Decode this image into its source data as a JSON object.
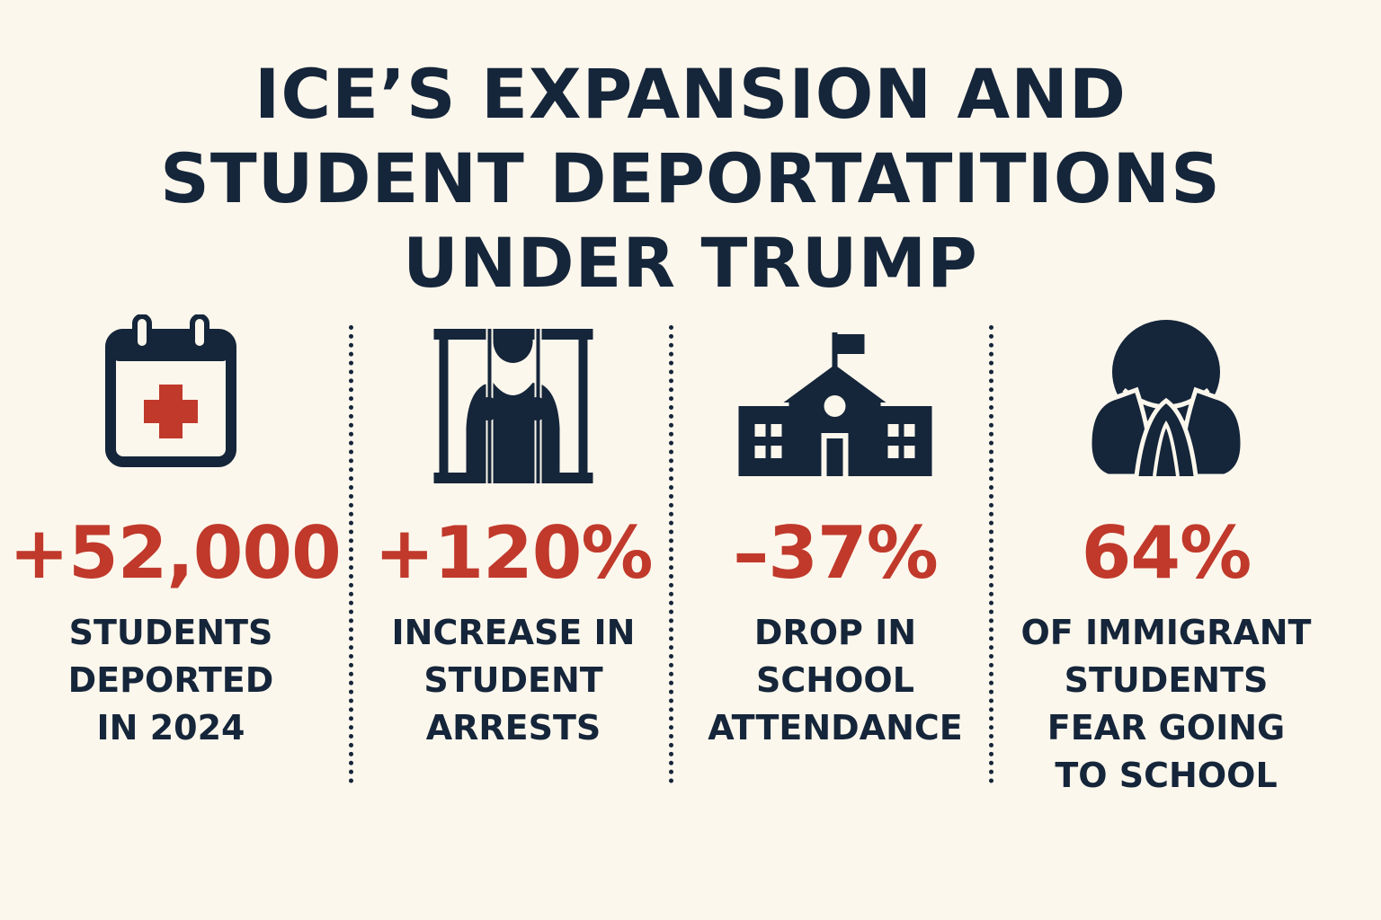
{
  "title": {
    "line1": "ICE’S EXPANSION AND",
    "line2": "STUDENT DEPORTATITIONS",
    "line3": "UNDER TRUMP"
  },
  "colors": {
    "navy": "#15253a",
    "red": "#c0392b",
    "background": "#fcf7ec"
  },
  "stats": [
    {
      "icon": "calendar-icon",
      "value": "+52,000",
      "caption": [
        "STUDENTS",
        "DEPORTED",
        "IN 2024"
      ]
    },
    {
      "icon": "jail-bars-icon",
      "value": "+120%",
      "caption": [
        "INCREASE IN",
        "STUDENT",
        "ARRESTS"
      ]
    },
    {
      "icon": "school-building-icon",
      "value": "–37%",
      "caption": [
        "DROP IN",
        "SCHOOL",
        "ATTENDANCE"
      ]
    },
    {
      "icon": "fearful-person-icon",
      "value": "64%",
      "caption": [
        "OF IMMIGRANT",
        "STUDENTS",
        "FEAR GOING",
        "TO SCHOOL"
      ]
    }
  ]
}
